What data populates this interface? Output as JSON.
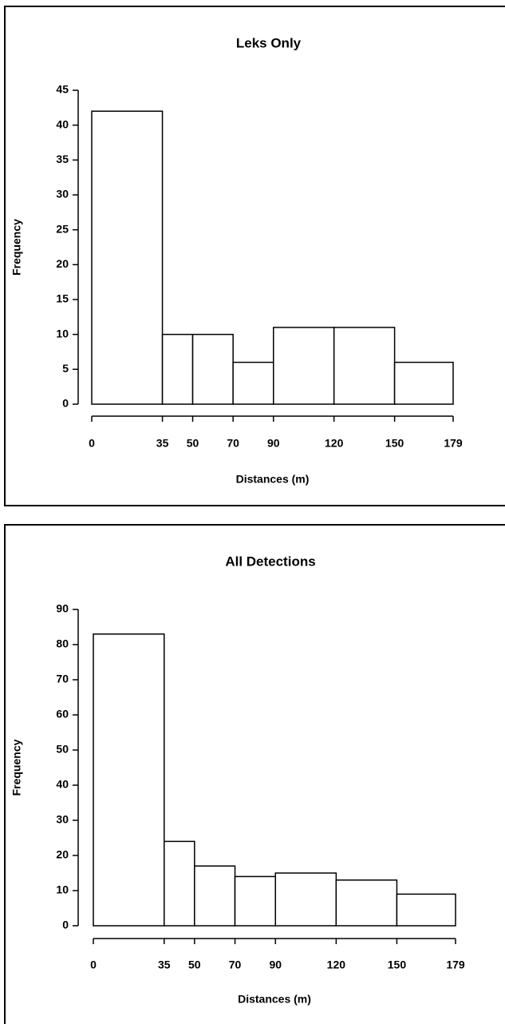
{
  "chart_data": [
    {
      "type": "histogram",
      "title": "Leks Only",
      "xlabel": "Distances (m)",
      "ylabel": "Frequency",
      "bins": [
        0,
        35,
        50,
        70,
        90,
        120,
        150,
        179
      ],
      "counts": [
        42,
        10,
        10,
        6,
        11,
        11,
        6
      ],
      "color": "#ffffff",
      "edgecolor": "#000000",
      "xlim": [
        0,
        179
      ],
      "xticks": [
        0,
        35,
        50,
        70,
        90,
        120,
        150,
        179
      ],
      "ylim": [
        0,
        45
      ],
      "yticks": [
        0,
        5,
        10,
        15,
        20,
        25,
        30,
        35,
        40,
        45
      ]
    },
    {
      "type": "histogram",
      "title": "All Detections",
      "xlabel": "Distances (m)",
      "ylabel": "Frequency",
      "bins": [
        0,
        35,
        50,
        70,
        90,
        120,
        150,
        179
      ],
      "counts": [
        83,
        24,
        17,
        14,
        15,
        13,
        9
      ],
      "color": "#ffffff",
      "edgecolor": "#000000",
      "xlim": [
        0,
        179
      ],
      "xticks": [
        0,
        35,
        50,
        70,
        90,
        120,
        150,
        179
      ],
      "ylim": [
        0,
        90
      ],
      "yticks": [
        0,
        10,
        20,
        30,
        40,
        50,
        60,
        70,
        80,
        90
      ]
    }
  ]
}
